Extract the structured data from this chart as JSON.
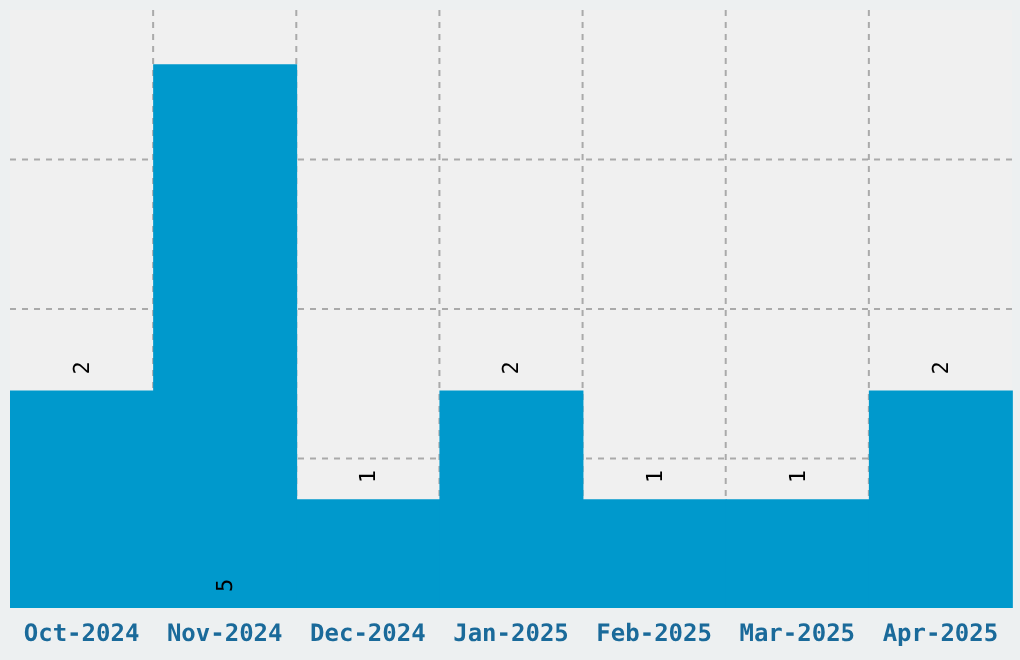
{
  "chart_data": {
    "type": "bar",
    "categories": [
      "Oct-2024",
      "Nov-2024",
      "Dec-2024",
      "Jan-2025",
      "Feb-2025",
      "Mar-2025",
      "Apr-2025"
    ],
    "values": [
      2,
      5,
      1,
      2,
      1,
      1,
      2
    ],
    "color": "#0099cc",
    "ylim": [
      0,
      5.5
    ],
    "yticks": [
      {
        "value": 1.375,
        "label": null
      },
      {
        "value": 2.75,
        "label": null
      },
      {
        "value": 4.125,
        "label": null
      }
    ],
    "tick_labels": "x",
    "grid": true,
    "data_labels": true
  }
}
